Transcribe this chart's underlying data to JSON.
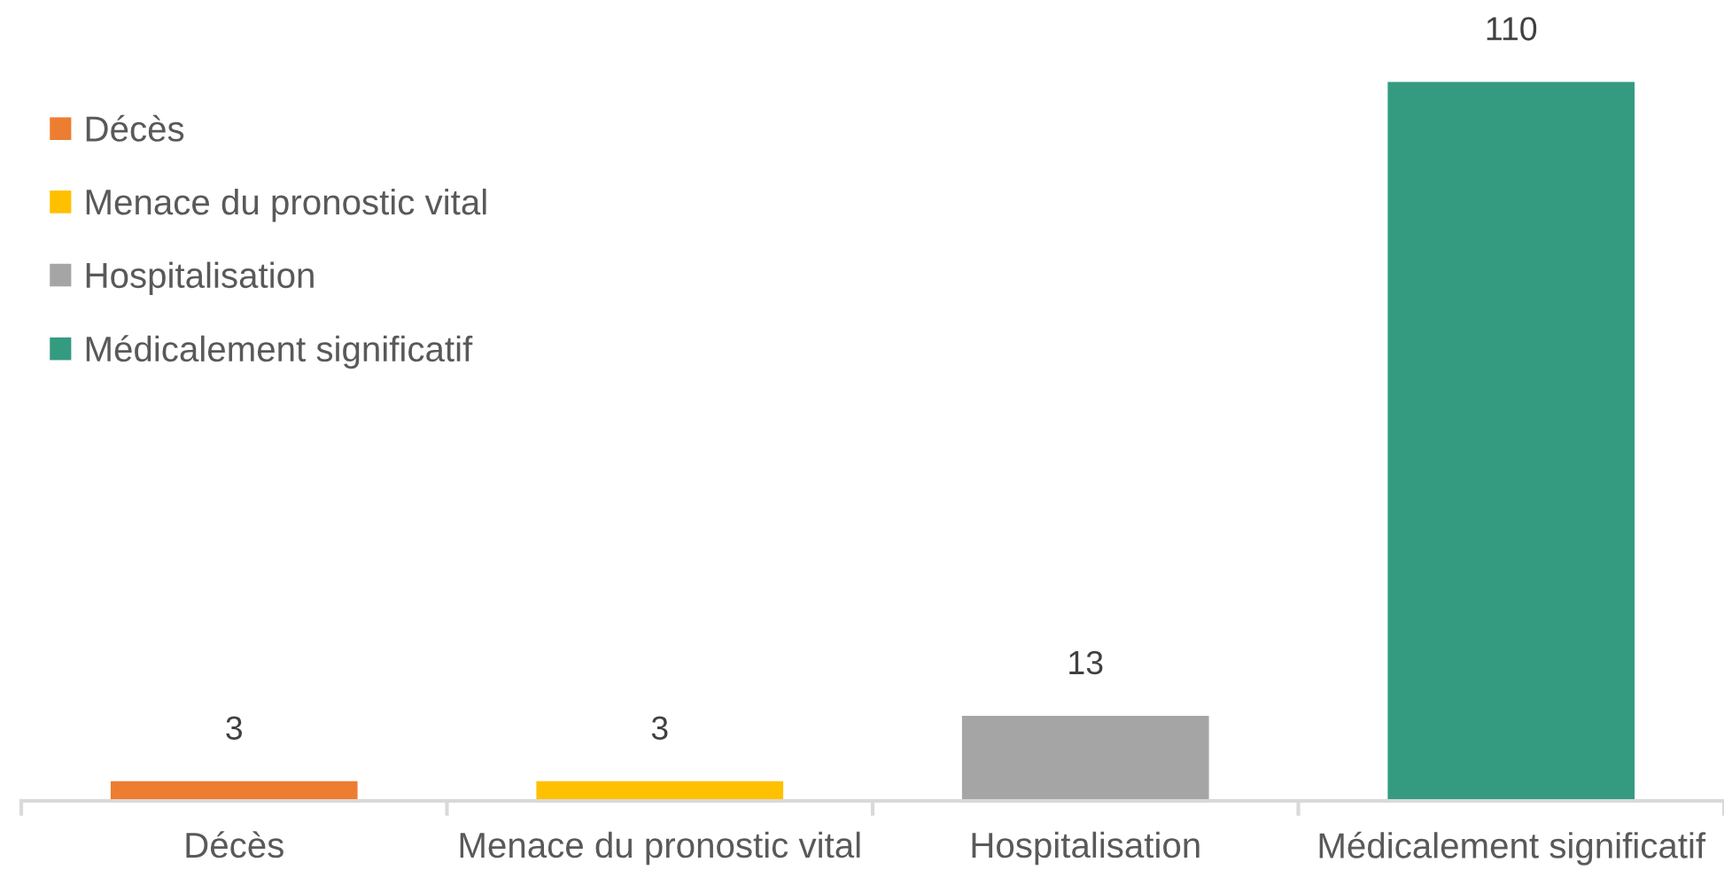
{
  "chart_data": {
    "type": "bar",
    "stacked": true,
    "categories": [
      "Décès",
      "Menace du pronostic vital",
      "Hospitalisation",
      "Médicalement significatif"
    ],
    "series": [
      {
        "name": "Décès",
        "color": "#ed7d31",
        "values": [
          3,
          null,
          null,
          null
        ]
      },
      {
        "name": "Menace du pronostic vital",
        "color": "#ffc000",
        "values": [
          null,
          3,
          null,
          null
        ]
      },
      {
        "name": "Hospitalisation",
        "color": "#a5a5a5",
        "values": [
          null,
          null,
          13,
          null
        ]
      },
      {
        "name": "Médicalement significatif",
        "color": "#349b81",
        "values": [
          null,
          null,
          null,
          110
        ]
      }
    ],
    "data_labels": true,
    "legend": "top left",
    "tick_labels": "x"
  }
}
